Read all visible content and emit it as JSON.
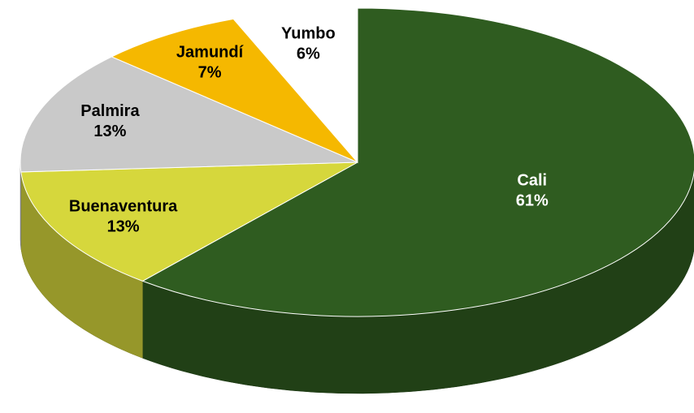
{
  "chart_data": {
    "type": "pie",
    "categories": [
      "Cali",
      "Buenaventura",
      "Palmira",
      "Jamundí",
      "Yumbo"
    ],
    "values": [
      61,
      13,
      13,
      7,
      6
    ],
    "value_labels": [
      "61%",
      "13%",
      "13%",
      "7%",
      "6%"
    ],
    "colors": [
      "#2f5c20",
      "#d6d73c",
      "#c9c9c9",
      "#f5b800",
      "#ffffff"
    ],
    "label_colors": [
      "#ffffff",
      "#000000",
      "#000000",
      "#000000",
      "#000000"
    ]
  }
}
